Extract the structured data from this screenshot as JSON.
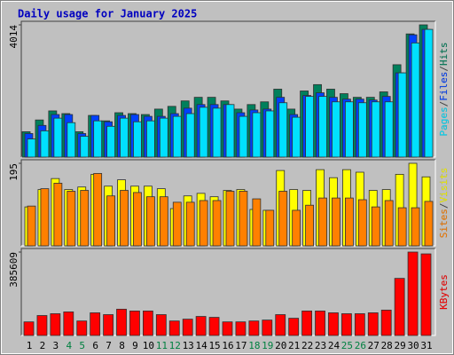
{
  "chart_data": [
    {
      "type": "bar",
      "title": "Daily usage for January 2025",
      "separator": "/",
      "ylim": [
        0,
        4014
      ],
      "yticks": [
        4014
      ],
      "series": [
        {
          "name": "Hits",
          "color": "#00805c",
          "values": [
            770,
            1127,
            1402,
            1320,
            770,
            1265,
            1100,
            1347,
            1320,
            1292,
            1457,
            1540,
            1705,
            1815,
            1815,
            1705,
            1457,
            1595,
            1677,
            2062,
            1457,
            2007,
            2200,
            2062,
            1925,
            1815,
            1815,
            1980,
            2804,
            3739,
            4014
          ]
        },
        {
          "name": "Files",
          "color": "#0040ff",
          "values": [
            715,
            962,
            1292,
            1292,
            715,
            1265,
            1072,
            1265,
            1292,
            1237,
            1237,
            1320,
            1485,
            1595,
            1595,
            1595,
            1347,
            1430,
            1457,
            1815,
            1292,
            1870,
            1952,
            1815,
            1760,
            1760,
            1732,
            1842,
            2557,
            3712,
            3877
          ]
        },
        {
          "name": "Pages",
          "color": "#00e0ff",
          "values": [
            550,
            797,
            1182,
            1045,
            632,
            1100,
            935,
            1182,
            1072,
            1100,
            1182,
            1237,
            1320,
            1512,
            1485,
            1595,
            1237,
            1347,
            1402,
            1650,
            1210,
            1842,
            1842,
            1677,
            1677,
            1650,
            1677,
            1677,
            2557,
            3465,
            3877
          ]
        }
      ]
    },
    {
      "type": "bar",
      "separator": "/",
      "ylim": [
        0,
        195
      ],
      "yticks": [
        195
      ],
      "series": [
        {
          "name": "Visits",
          "color": "#ffff00",
          "values": [
            92,
            133,
            159,
            133,
            139,
            169,
            141,
            156,
            141,
            141,
            135,
            88,
            118,
            124,
            116,
            131,
            133,
            86,
            84,
            178,
            133,
            131,
            180,
            161,
            180,
            174,
            131,
            133,
            169,
            195,
            163
          ]
        },
        {
          "name": "Sites",
          "color": "#ff8000",
          "values": [
            94,
            135,
            148,
            129,
            131,
            171,
            118,
            131,
            126,
            116,
            116,
            103,
            103,
            107,
            107,
            129,
            129,
            111,
            84,
            129,
            84,
            96,
            113,
            113,
            113,
            109,
            92,
            107,
            90,
            90,
            105
          ]
        }
      ]
    },
    {
      "type": "bar",
      "ylim": [
        0,
        385609
      ],
      "yticks": [
        385609
      ],
      "categories": [
        1,
        2,
        3,
        4,
        5,
        6,
        7,
        8,
        9,
        10,
        11,
        12,
        13,
        14,
        15,
        16,
        17,
        18,
        19,
        20,
        21,
        22,
        23,
        24,
        25,
        26,
        27,
        28,
        29,
        30,
        31
      ],
      "weekends": [
        4,
        5,
        11,
        12,
        18,
        19,
        25,
        26
      ],
      "weekend_color": "#008040",
      "series": [
        {
          "name": "KBytes",
          "color": "#ff0000",
          "values": [
            62871,
            92210,
            100594,
            108977,
            67063,
            104785,
            96402,
            121552,
            113168,
            113168,
            96402,
            67063,
            75446,
            88018,
            83827,
            62871,
            62871,
            67063,
            71254,
            96402,
            79636,
            113168,
            113168,
            104785,
            100594,
            100594,
            104785,
            117360,
            264000,
            385609,
            377226
          ]
        }
      ]
    }
  ]
}
